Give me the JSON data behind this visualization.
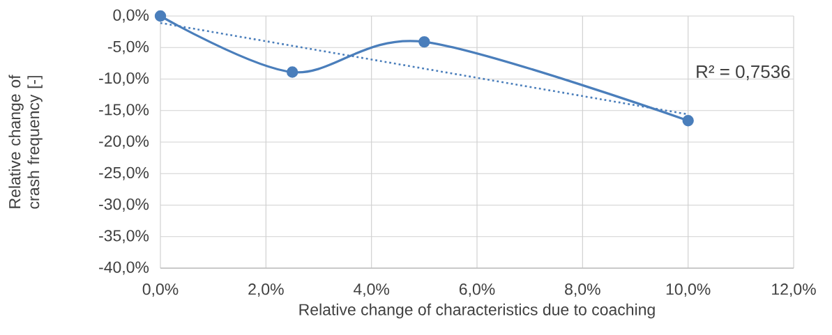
{
  "chart_data": {
    "type": "line",
    "xlabel": "Relative change of characteristics due to coaching",
    "ylabel": "Relative change of crash frequency [-]",
    "xlim": [
      0,
      12
    ],
    "ylim": [
      -40,
      0
    ],
    "xticks": [
      {
        "value": 0,
        "label": "0,0%"
      },
      {
        "value": 2,
        "label": "2,0%"
      },
      {
        "value": 4,
        "label": "4,0%"
      },
      {
        "value": 6,
        "label": "6,0%"
      },
      {
        "value": 8,
        "label": "8,0%"
      },
      {
        "value": 10,
        "label": "10,0%"
      },
      {
        "value": 12,
        "label": "12,0%"
      }
    ],
    "yticks": [
      {
        "value": 0,
        "label": "0,0%"
      },
      {
        "value": -5,
        "label": "-5,0%"
      },
      {
        "value": -10,
        "label": "-10,0%"
      },
      {
        "value": -15,
        "label": "-15,0%"
      },
      {
        "value": -20,
        "label": "-20,0%"
      },
      {
        "value": -25,
        "label": "-25,0%"
      },
      {
        "value": -30,
        "label": "-30,0%"
      },
      {
        "value": -35,
        "label": "-35,0%"
      },
      {
        "value": -40,
        "label": "-40,0%"
      }
    ],
    "grid": true,
    "series": [
      {
        "color": "#4a7ebb",
        "x": [
          0,
          2.5,
          5,
          10
        ],
        "values": [
          0,
          -8.9,
          -4.1,
          -16.6
        ],
        "marker": "circle",
        "line_style": "solid"
      },
      {
        "color": "#4a7ebb",
        "x": [
          0,
          10
        ],
        "values": [
          -1.1,
          -15.6
        ],
        "marker": "none",
        "line_style": "dotted"
      }
    ],
    "annotations": [
      "R² = 0,7536"
    ]
  }
}
